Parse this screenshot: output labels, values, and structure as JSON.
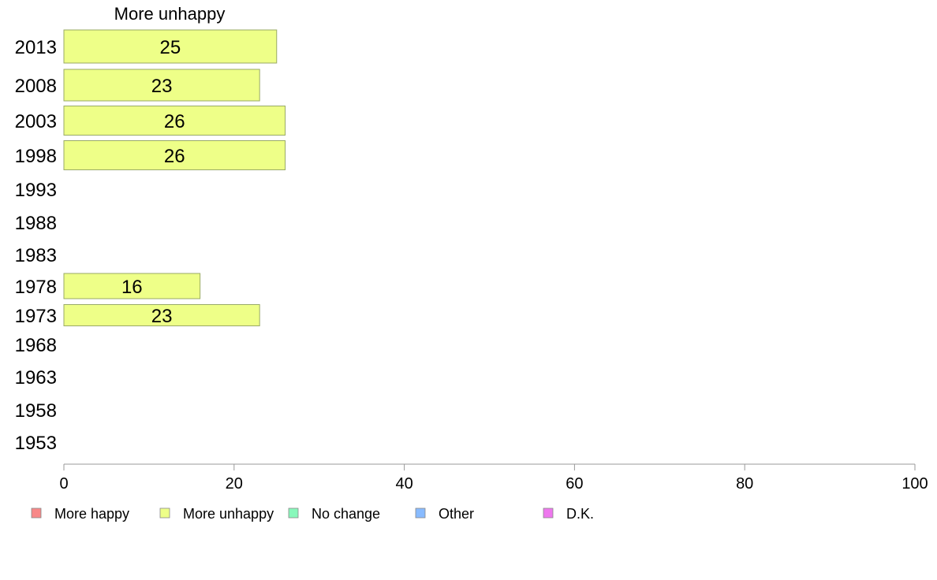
{
  "chart_data": {
    "type": "bar",
    "orientation": "horizontal",
    "title": "More unhappy",
    "categories": [
      "2013",
      "2008",
      "2003",
      "1998",
      "1993",
      "1988",
      "1983",
      "1978",
      "1973",
      "1968",
      "1963",
      "1958",
      "1953"
    ],
    "series": [
      {
        "name": "More unhappy",
        "color": "#eeff88",
        "values": [
          25,
          23,
          26,
          26,
          null,
          null,
          null,
          16,
          23,
          null,
          null,
          null,
          null
        ]
      }
    ],
    "xlim": [
      0,
      100
    ],
    "xticks": [
      "0",
      "20",
      "40",
      "60",
      "80",
      "100"
    ],
    "grid": false,
    "legend": {
      "placement": "bottom",
      "items": [
        {
          "label": "More happy",
          "color": "#f88888"
        },
        {
          "label": "More unhappy",
          "color": "#eeff88"
        },
        {
          "label": "No change",
          "color": "#88f8bb"
        },
        {
          "label": "Other",
          "color": "#88bbff"
        },
        {
          "label": "D.K.",
          "color": "#ee77ee"
        }
      ]
    },
    "bar_border_color": "#99aa66",
    "axis_color": "#999999"
  }
}
